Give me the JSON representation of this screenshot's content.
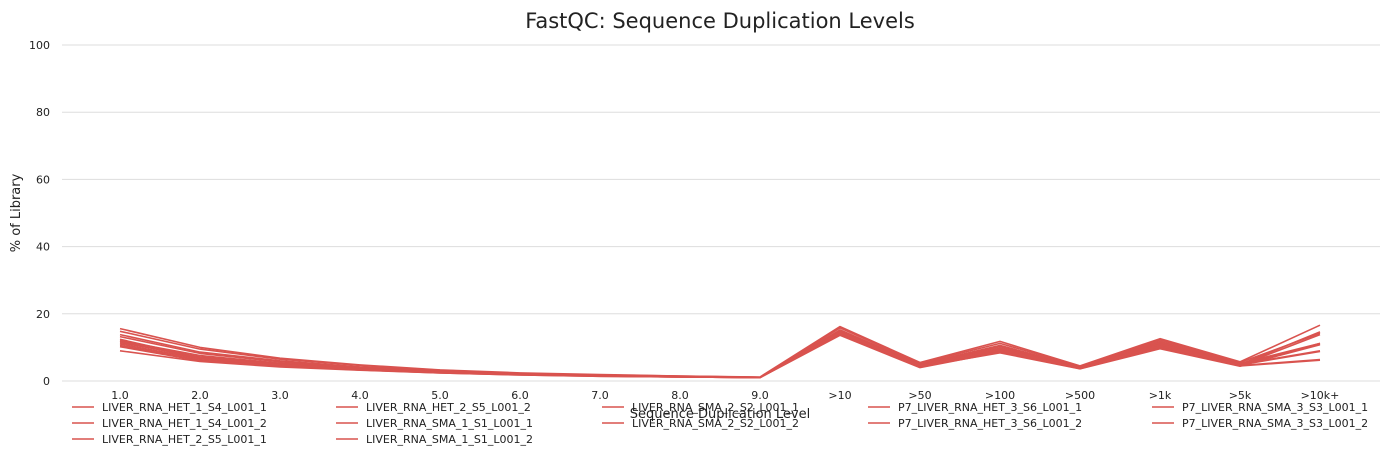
{
  "chart_data": {
    "type": "line",
    "title": "FastQC: Sequence Duplication Levels",
    "xlabel": "Sequence Duplication Level",
    "ylabel": "% of Library",
    "ylim": [
      0,
      100
    ],
    "yticks": [
      "0",
      "20",
      "40",
      "60",
      "80",
      "100"
    ],
    "categories": [
      "1.0",
      "2.0",
      "3.0",
      "4.0",
      "5.0",
      "6.0",
      "7.0",
      "8.0",
      "9.0",
      ">10",
      ">50",
      ">100",
      ">500",
      ">1k",
      ">5k",
      ">10k+"
    ],
    "grid": true,
    "legend_position": "bottom",
    "line_color": "#d9534f",
    "series": [
      {
        "name": "LIVER_RNA_HET_1_S4_L001_1",
        "values": [
          15.6,
          10.0,
          6.8,
          4.8,
          3.3,
          2.4,
          1.9,
          1.5,
          1.2,
          16.2,
          5.5,
          11.8,
          4.5,
          12.6,
          5.7,
          16.6
        ]
      },
      {
        "name": "LIVER_RNA_HET_1_S4_L001_2",
        "values": [
          14.8,
          9.5,
          6.5,
          4.6,
          3.2,
          2.3,
          1.8,
          1.5,
          1.1,
          15.8,
          5.3,
          11.2,
          4.4,
          12.2,
          5.5,
          14.2
        ]
      },
      {
        "name": "LIVER_RNA_HET_2_S5_L001_1",
        "values": [
          13.8,
          8.6,
          6.0,
          4.2,
          3.0,
          2.2,
          1.7,
          1.4,
          1.1,
          15.2,
          5.0,
          10.6,
          4.2,
          11.8,
          5.2,
          11.2
        ]
      },
      {
        "name": "LIVER_RNA_HET_2_S5_L001_2",
        "values": [
          13.2,
          8.2,
          5.7,
          4.0,
          2.9,
          2.1,
          1.7,
          1.4,
          1.1,
          14.8,
          4.8,
          10.2,
          4.1,
          11.4,
          5.0,
          11.0
        ]
      },
      {
        "name": "LIVER_RNA_SMA_1_S1_L001_1",
        "values": [
          12.0,
          7.6,
          5.3,
          3.8,
          2.8,
          2.0,
          1.6,
          1.3,
          1.0,
          14.5,
          4.6,
          9.8,
          4.0,
          11.0,
          4.9,
          9.0
        ]
      },
      {
        "name": "LIVER_RNA_SMA_1_S1_L001_2",
        "values": [
          11.4,
          7.2,
          5.0,
          3.6,
          2.6,
          1.9,
          1.5,
          1.3,
          1.0,
          14.2,
          4.4,
          9.4,
          3.9,
          10.6,
          4.8,
          8.8
        ]
      },
      {
        "name": "LIVER_RNA_SMA_2_S2_L001_1",
        "values": [
          11.0,
          6.6,
          4.7,
          3.4,
          2.5,
          1.9,
          1.5,
          1.2,
          1.0,
          13.9,
          4.2,
          9.0,
          3.8,
          10.2,
          4.6,
          6.4
        ]
      },
      {
        "name": "LIVER_RNA_SMA_2_S2_L001_2",
        "values": [
          10.6,
          6.2,
          4.5,
          3.3,
          2.4,
          1.8,
          1.4,
          1.2,
          1.0,
          13.6,
          4.0,
          8.6,
          3.7,
          9.8,
          4.5,
          6.2
        ]
      },
      {
        "name": "P7_LIVER_RNA_HET_3_S6_L001_1",
        "values": [
          9.0,
          5.8,
          4.2,
          3.2,
          2.4,
          1.8,
          1.4,
          1.2,
          1.0,
          14.0,
          4.3,
          8.4,
          3.6,
          9.6,
          4.4,
          11.2
        ]
      },
      {
        "name": "P7_LIVER_RNA_HET_3_S6_L001_2",
        "values": [
          10.2,
          6.0,
          4.4,
          3.3,
          2.5,
          1.9,
          1.5,
          1.2,
          1.0,
          14.1,
          4.1,
          8.8,
          3.7,
          10.0,
          4.5,
          10.8
        ]
      },
      {
        "name": "P7_LIVER_RNA_SMA_3_S3_L001_1",
        "values": [
          12.4,
          7.0,
          4.9,
          3.5,
          2.6,
          1.9,
          1.5,
          1.3,
          1.0,
          14.6,
          4.7,
          9.6,
          3.9,
          10.8,
          4.9,
          14.6
        ]
      },
      {
        "name": "P7_LIVER_RNA_SMA_3_S3_L001_2",
        "values": [
          11.8,
          6.8,
          4.8,
          3.5,
          2.6,
          1.9,
          1.5,
          1.2,
          1.0,
          14.4,
          4.5,
          9.2,
          3.8,
          10.4,
          4.7,
          13.8
        ]
      }
    ]
  }
}
